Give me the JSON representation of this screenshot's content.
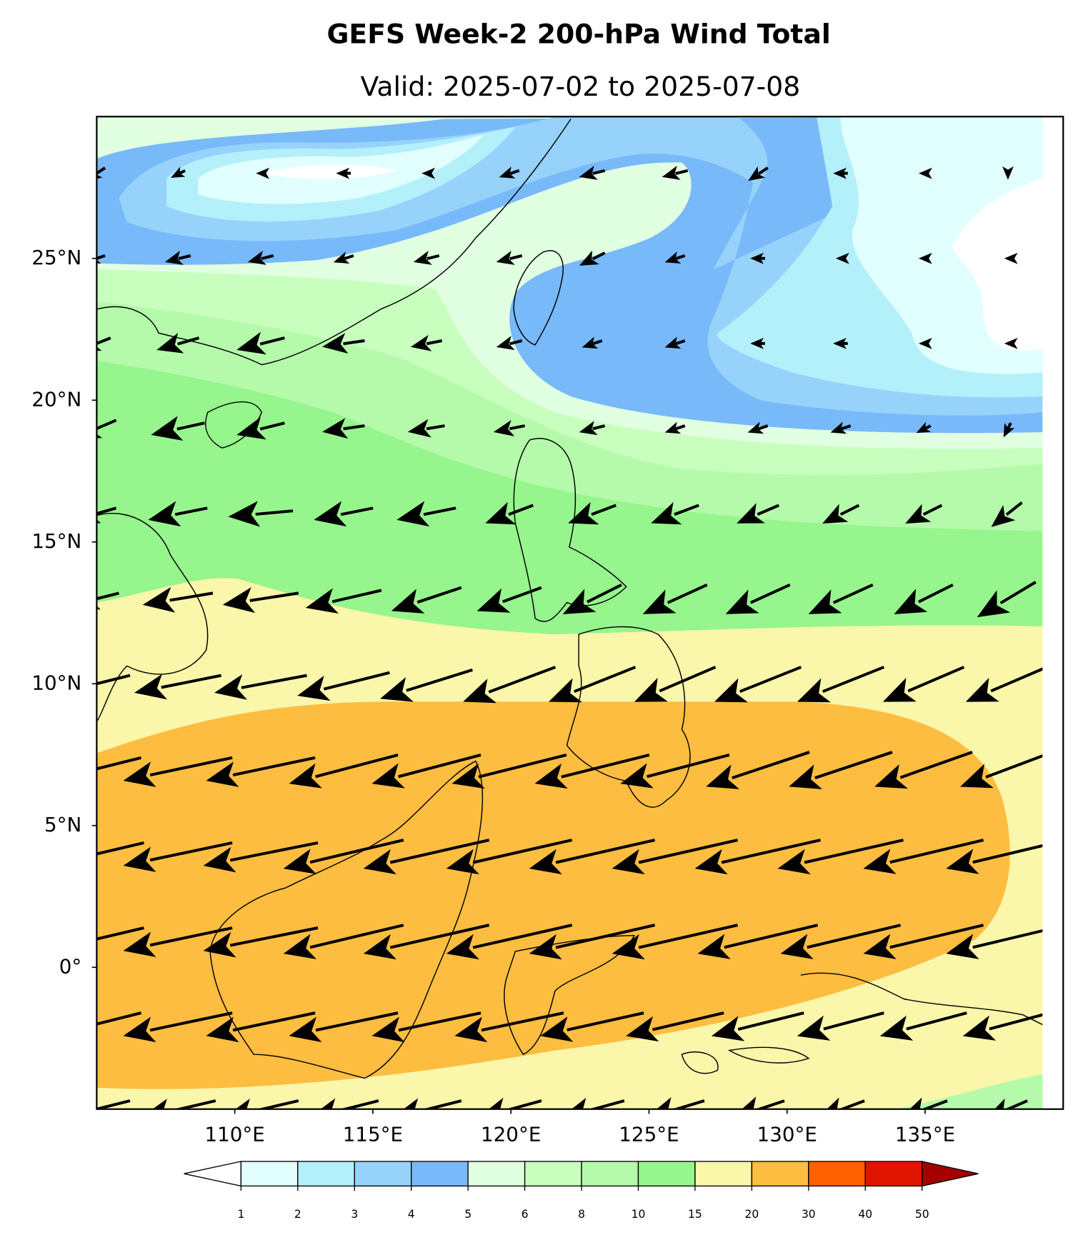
{
  "chart_data": {
    "type": "map",
    "title": "GEFS Week-2 200-hPa Wind Total",
    "subtitle": "Valid: 2025-07-02 to 2025-07-08",
    "xlim": [
      105,
      140
    ],
    "ylim": [
      -5,
      30
    ],
    "xticks": [
      {
        "value": 110,
        "label": "110°E"
      },
      {
        "value": 115,
        "label": "115°E"
      },
      {
        "value": 120,
        "label": "120°E"
      },
      {
        "value": 125,
        "label": "125°E"
      },
      {
        "value": 130,
        "label": "130°E"
      },
      {
        "value": 135,
        "label": "135°E"
      }
    ],
    "yticks": [
      {
        "value": 25,
        "label": "25°N"
      },
      {
        "value": 20,
        "label": "20°N"
      },
      {
        "value": 15,
        "label": "15°N"
      },
      {
        "value": 10,
        "label": "10°N"
      },
      {
        "value": 5,
        "label": "5°N"
      },
      {
        "value": 0,
        "label": "0°"
      }
    ],
    "colorbar": {
      "levels": [
        1,
        2,
        3,
        4,
        5,
        6,
        8,
        10,
        15,
        20,
        30,
        40,
        50
      ],
      "colors": [
        "#e1ffff",
        "#b4f0fa",
        "#96d2fa",
        "#78b9fa",
        "#e1ffe1",
        "#c8ffbe",
        "#b4faaa",
        "#96f58c",
        "#faf6aa",
        "#fdbd40",
        "#ff6000",
        "#e11400"
      ],
      "under_color": "#ffffff",
      "over_color": "#a50000"
    },
    "wind": {
      "lons": [
        105,
        108,
        111,
        114,
        117,
        120,
        123,
        126,
        129,
        132,
        135,
        138
      ],
      "lats": [
        28,
        25,
        22,
        19,
        16,
        13,
        10,
        7,
        4,
        1,
        -2,
        -5
      ],
      "u": [
        [
          -3,
          -2,
          -1,
          -2,
          -1,
          -3,
          -4,
          -4,
          -3,
          -2,
          -1,
          0
        ],
        [
          -3,
          -4,
          -4,
          -3,
          -4,
          -4,
          -4,
          -3,
          -2,
          -1,
          -1,
          0
        ],
        [
          -5,
          -7,
          -8,
          -7,
          -5,
          -4,
          -3,
          -3,
          -2,
          -2,
          -1,
          0
        ],
        [
          -7,
          -9,
          -8,
          -7,
          -6,
          -5,
          -4,
          -3,
          -3,
          -3,
          -2,
          -1
        ],
        [
          -7,
          -10,
          -11,
          -10,
          -10,
          -8,
          -8,
          -8,
          -7,
          -6,
          -6,
          -5
        ],
        [
          -8,
          -12,
          -13,
          -13,
          -12,
          -11,
          -10,
          -11,
          -11,
          -11,
          -10,
          -10
        ],
        [
          -12,
          -15,
          -16,
          -16,
          -16,
          -16,
          -15,
          -14,
          -15,
          -15,
          -14,
          -14
        ],
        [
          -16,
          -19,
          -19,
          -19,
          -19,
          -20,
          -20,
          -19,
          -18,
          -18,
          -17,
          -16
        ],
        [
          -17,
          -19,
          -20,
          -21,
          -22,
          -22,
          -22,
          -22,
          -22,
          -22,
          -21,
          -21
        ],
        [
          -17,
          -19,
          -20,
          -21,
          -22,
          -22,
          -22,
          -22,
          -21,
          -21,
          -21,
          -21
        ],
        [
          -16,
          -19,
          -19,
          -19,
          -19,
          -19,
          -18,
          -17,
          -16,
          -15,
          -15,
          -15
        ],
        [
          -12,
          -13,
          -13,
          -12,
          -12,
          -11,
          -11,
          -10,
          -9,
          -8,
          -8,
          -7
        ]
      ],
      "v": [
        [
          -2,
          -1,
          0,
          0,
          0,
          -1,
          -1,
          -1,
          -2,
          0,
          0,
          -1
        ],
        [
          -1,
          -1,
          -1,
          -1,
          -1,
          -1,
          -2,
          -1,
          0,
          0,
          0,
          0
        ],
        [
          -2,
          -2,
          -2,
          -1,
          -1,
          -1,
          -1,
          -1,
          0,
          0,
          0,
          0
        ],
        [
          -3,
          -2,
          -2,
          -1,
          -1,
          -1,
          -1,
          -1,
          -1,
          -1,
          -1,
          -2
        ],
        [
          -2,
          -2,
          -1,
          -2,
          -2,
          -3,
          -3,
          -3,
          -3,
          -3,
          -3,
          -4
        ],
        [
          -2,
          -2,
          -2,
          -3,
          -4,
          -4,
          -5,
          -5,
          -5,
          -5,
          -5,
          -6
        ],
        [
          -3,
          -3,
          -3,
          -4,
          -5,
          -6,
          -6,
          -6,
          -6,
          -6,
          -6,
          -6
        ],
        [
          -4,
          -4,
          -4,
          -5,
          -5,
          -5,
          -5,
          -5,
          -6,
          -6,
          -6,
          -6
        ],
        [
          -4,
          -4,
          -4,
          -5,
          -5,
          -5,
          -5,
          -5,
          -5,
          -5,
          -5,
          -5
        ],
        [
          -4,
          -4,
          -4,
          -5,
          -5,
          -5,
          -5,
          -5,
          -5,
          -5,
          -5,
          -5
        ],
        [
          -4,
          -4,
          -4,
          -4,
          -4,
          -4,
          -4,
          -4,
          -4,
          -4,
          -4,
          -4
        ],
        [
          -3,
          -3,
          -3,
          -3,
          -3,
          -3,
          -3,
          -3,
          -3,
          -3,
          -3,
          -3
        ]
      ]
    }
  }
}
